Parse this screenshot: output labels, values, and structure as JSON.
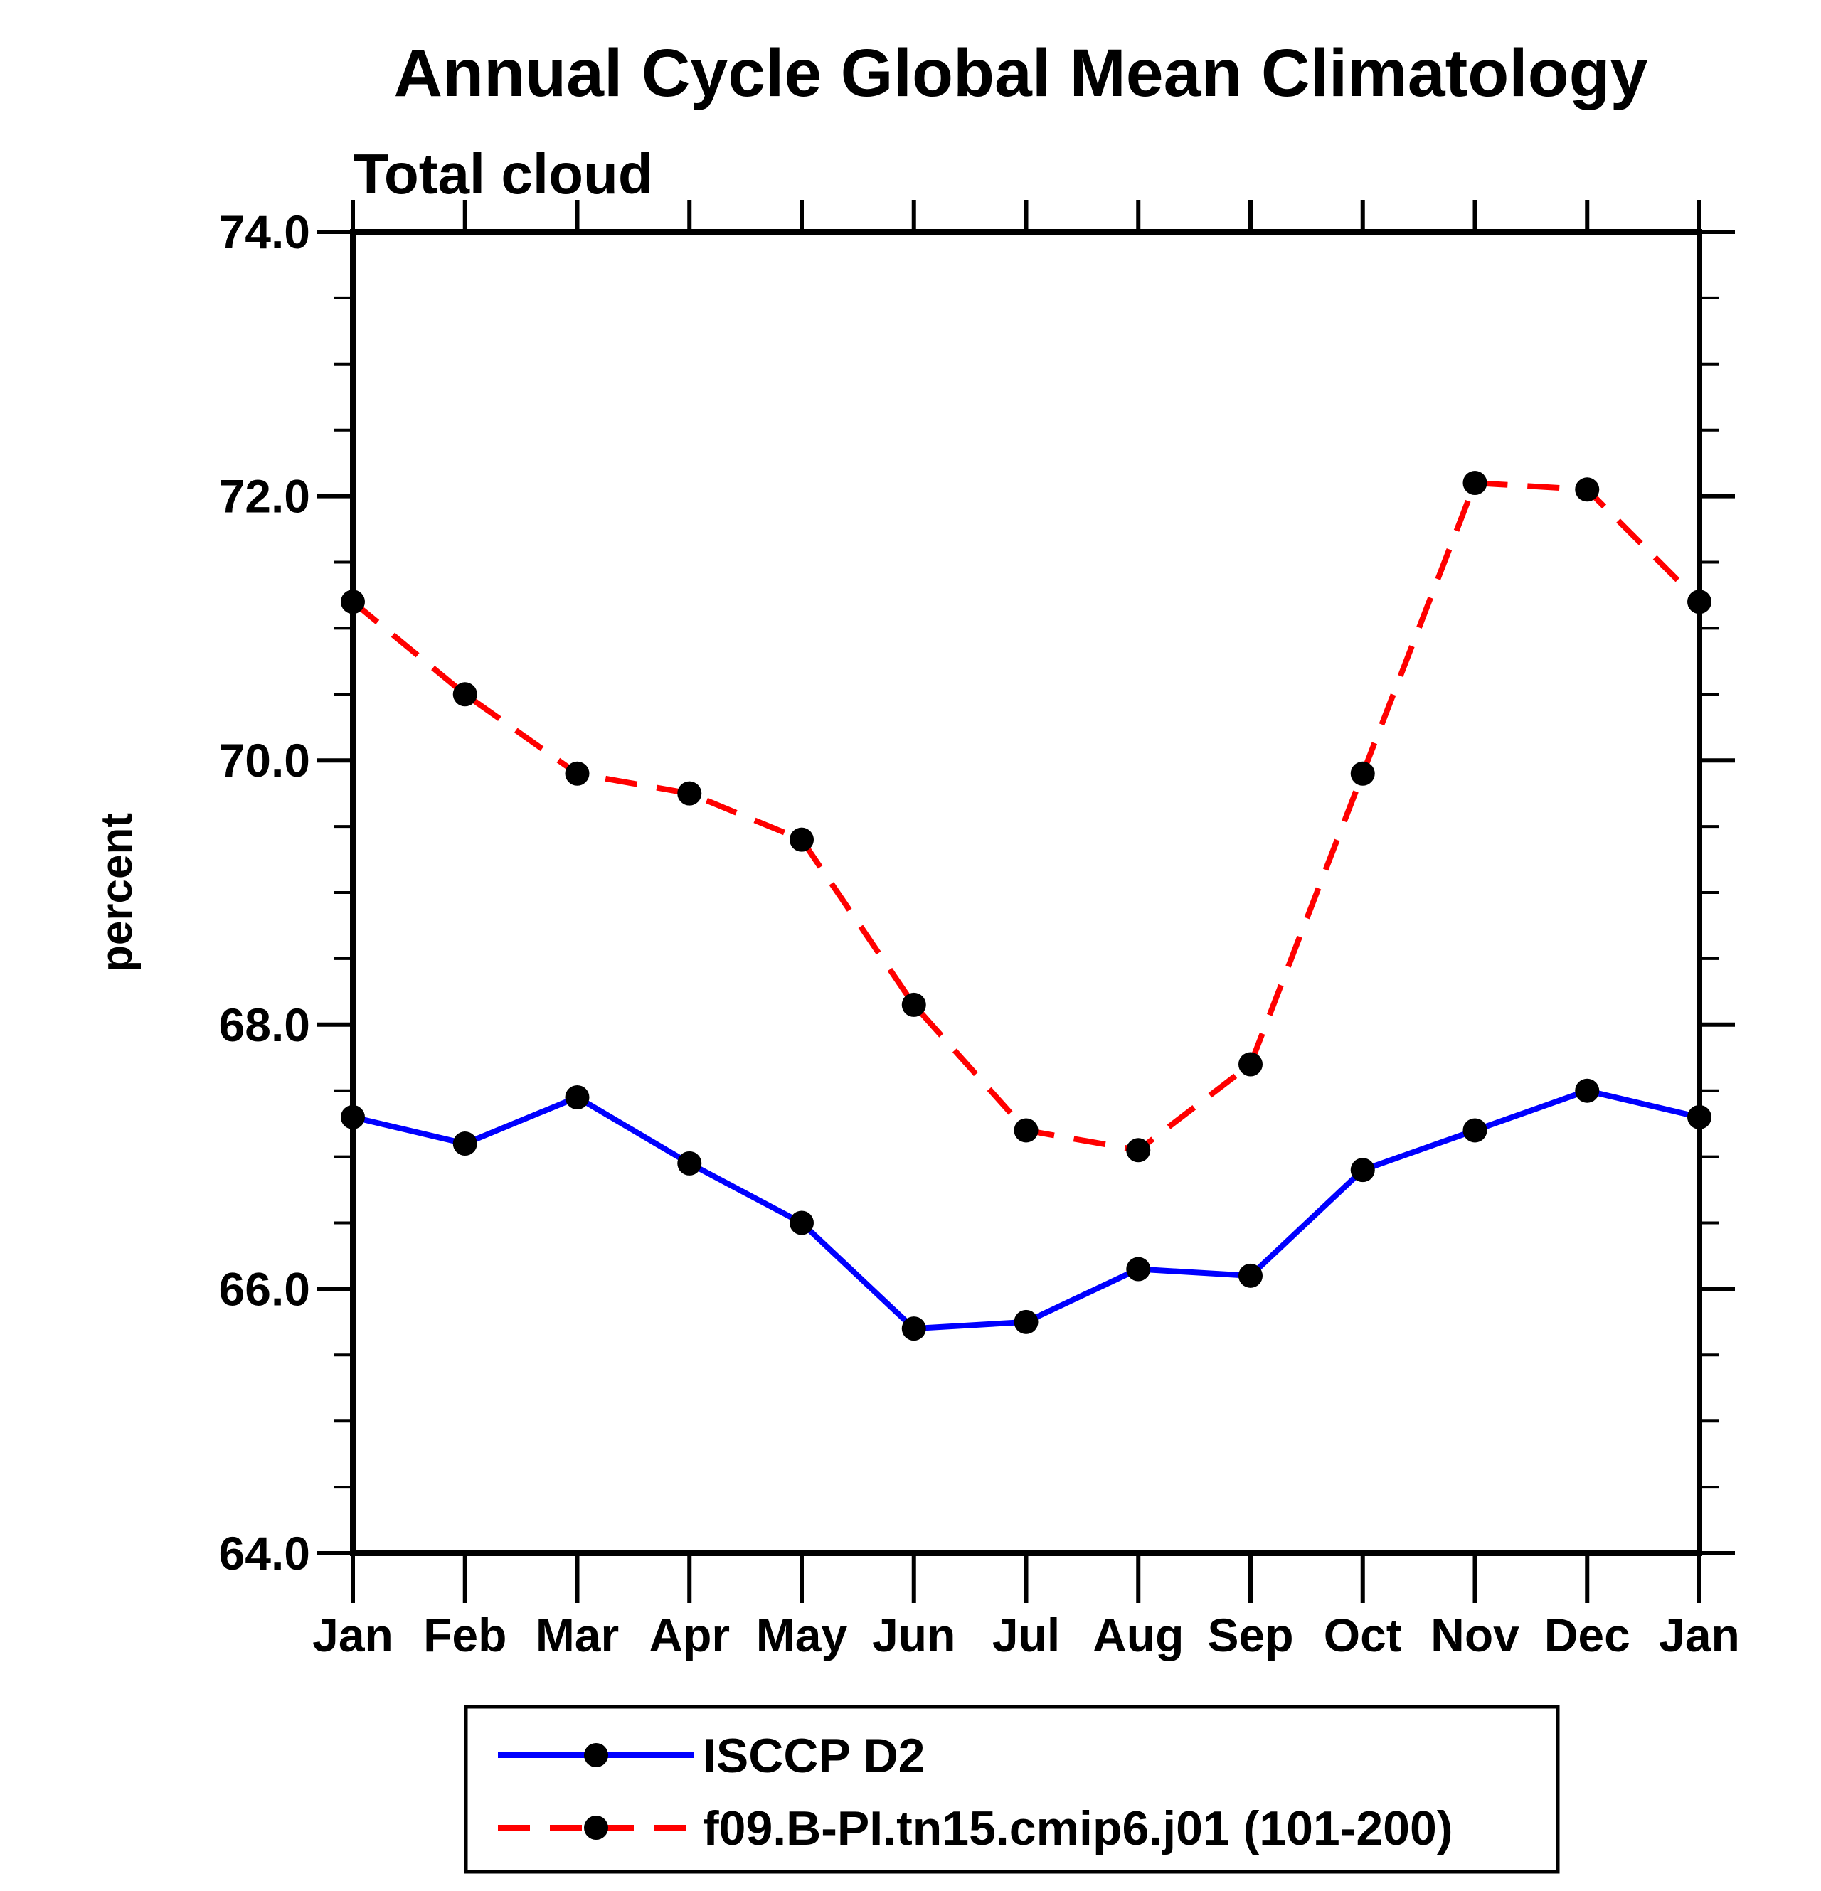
{
  "title": "Annual Cycle Global Mean Climatology",
  "subtitle": "Total cloud",
  "ylabel": "percent",
  "chart_data": {
    "type": "line",
    "categories": [
      "Jan",
      "Feb",
      "Mar",
      "Apr",
      "May",
      "Jun",
      "Jul",
      "Aug",
      "Sep",
      "Oct",
      "Nov",
      "Dec",
      "Jan"
    ],
    "series": [
      {
        "name": "ISCCP D2",
        "color": "#0000ff",
        "line_style": "solid",
        "marker": "filled-black-circle",
        "values": [
          67.3,
          67.1,
          67.45,
          66.95,
          66.5,
          65.7,
          65.75,
          66.15,
          66.1,
          66.9,
          67.2,
          67.5,
          67.3
        ]
      },
      {
        "name": "f09.B-PI.tn15.cmip6.j01 (101-200)",
        "color": "#ff0000",
        "line_style": "dashed",
        "marker": "filled-black-circle",
        "values": [
          71.2,
          70.5,
          69.9,
          69.75,
          69.4,
          68.15,
          67.2,
          67.05,
          67.7,
          69.9,
          72.1,
          72.05,
          71.2
        ]
      }
    ],
    "ylim": [
      64.0,
      74.0
    ],
    "ytick_major": [
      74.0,
      72.0,
      70.0,
      68.0,
      66.0,
      64.0
    ],
    "ytick_labels": [
      "74.0",
      "72.0",
      "70.0",
      "68.0",
      "66.0",
      "64.0"
    ],
    "ytick_minor_step": 0.5,
    "grid": false,
    "legend_position": "bottom"
  },
  "colors": {
    "axis": "#000000",
    "marker": "#000000",
    "series_obs": "#0000ff",
    "series_model": "#ff0000",
    "background": "#ffffff"
  }
}
